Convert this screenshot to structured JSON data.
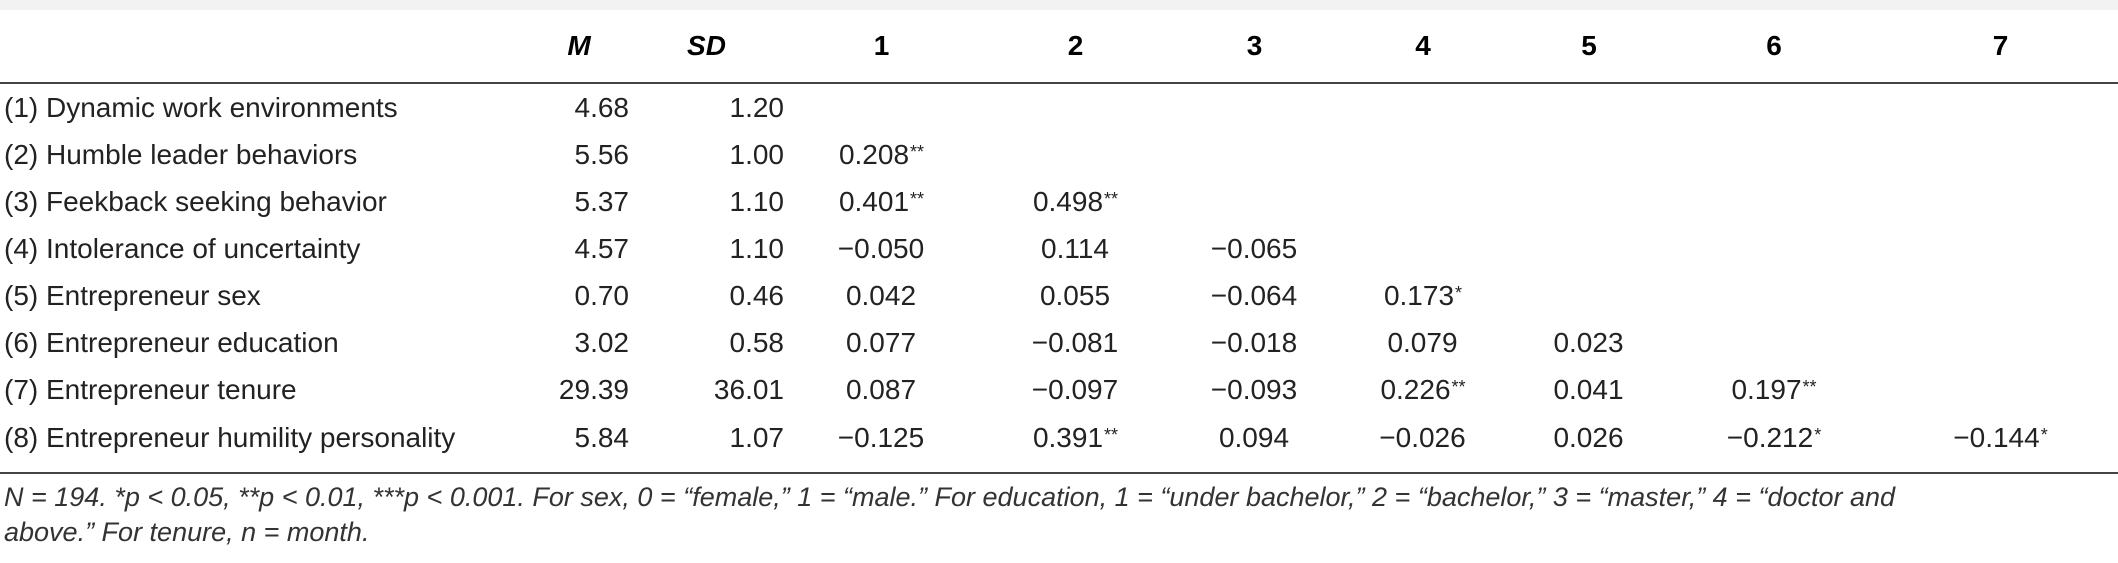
{
  "table": {
    "headers": {
      "variable": "",
      "m": "M",
      "sd": "SD",
      "cols": [
        "1",
        "2",
        "3",
        "4",
        "5",
        "6",
        "7"
      ]
    },
    "rows": [
      {
        "label": "(1) Dynamic work environments",
        "m": "4.68",
        "sd": "1.20",
        "cells": [
          [
            "",
            ""
          ],
          [
            "",
            ""
          ],
          [
            "",
            ""
          ],
          [
            "",
            ""
          ],
          [
            "",
            ""
          ],
          [
            "",
            ""
          ],
          [
            "",
            ""
          ]
        ]
      },
      {
        "label": "(2) Humble leader behaviors",
        "m": "5.56",
        "sd": "1.00",
        "cells": [
          [
            "0.208",
            "**"
          ],
          [
            "",
            ""
          ],
          [
            "",
            ""
          ],
          [
            "",
            ""
          ],
          [
            "",
            ""
          ],
          [
            "",
            ""
          ],
          [
            "",
            ""
          ]
        ]
      },
      {
        "label": "(3) Feekback seeking behavior",
        "m": "5.37",
        "sd": "1.10",
        "cells": [
          [
            "0.401",
            "**"
          ],
          [
            "0.498",
            "**"
          ],
          [
            "",
            ""
          ],
          [
            "",
            ""
          ],
          [
            "",
            ""
          ],
          [
            "",
            ""
          ],
          [
            "",
            ""
          ]
        ]
      },
      {
        "label": "(4) Intolerance of uncertainty",
        "m": "4.57",
        "sd": "1.10",
        "cells": [
          [
            "−0.050",
            ""
          ],
          [
            "0.114",
            ""
          ],
          [
            "−0.065",
            ""
          ],
          [
            "",
            ""
          ],
          [
            "",
            ""
          ],
          [
            "",
            ""
          ],
          [
            "",
            ""
          ]
        ]
      },
      {
        "label": "(5) Entrepreneur sex",
        "m": "0.70",
        "sd": "0.46",
        "cells": [
          [
            "0.042",
            ""
          ],
          [
            "0.055",
            ""
          ],
          [
            "−0.064",
            ""
          ],
          [
            "0.173",
            "*"
          ],
          [
            "",
            ""
          ],
          [
            "",
            ""
          ],
          [
            "",
            ""
          ]
        ]
      },
      {
        "label": "(6) Entrepreneur education",
        "m": "3.02",
        "sd": "0.58",
        "cells": [
          [
            "0.077",
            ""
          ],
          [
            "−0.081",
            ""
          ],
          [
            "−0.018",
            ""
          ],
          [
            "0.079",
            ""
          ],
          [
            "0.023",
            ""
          ],
          [
            "",
            ""
          ],
          [
            "",
            ""
          ]
        ]
      },
      {
        "label": "(7) Entrepreneur tenure",
        "m": "29.39",
        "sd": "36.01",
        "cells": [
          [
            "0.087",
            ""
          ],
          [
            "−0.097",
            ""
          ],
          [
            "−0.093",
            ""
          ],
          [
            "0.226",
            "**"
          ],
          [
            "0.041",
            ""
          ],
          [
            "0.197",
            "**"
          ],
          [
            "",
            ""
          ]
        ]
      },
      {
        "label": "(8) Entrepreneur humility personality",
        "m": "5.84",
        "sd": "1.07",
        "cells": [
          [
            "−0.125",
            ""
          ],
          [
            "0.391",
            "**"
          ],
          [
            "0.094",
            ""
          ],
          [
            "−0.026",
            ""
          ],
          [
            "0.026",
            ""
          ],
          [
            "−0.212",
            "*"
          ],
          [
            "−0.144",
            "*"
          ]
        ]
      }
    ],
    "note_line1": "N = 194. *p < 0.05, **p < 0.01, ***p < 0.001. For sex, 0 = “female,” 1 = “male.” For education, 1 = “under bachelor,” 2 = “bachelor,” 3 = “master,” 4 = “doctor and",
    "note_line2": "above.” For tenure, n = month."
  }
}
